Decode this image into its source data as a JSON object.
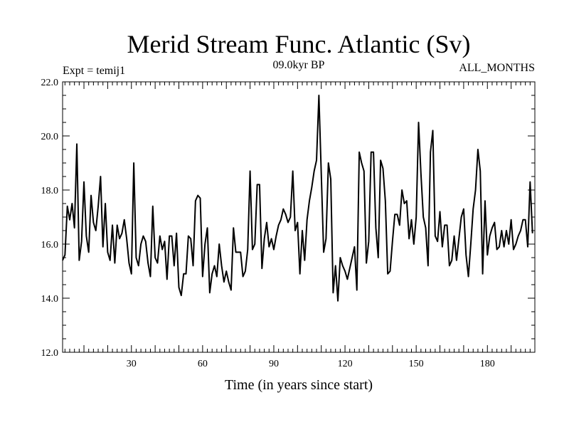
{
  "chart_data": {
    "type": "line",
    "title": "Merid Stream Func. Atlantic (Sv)",
    "experiment_label": "Expt = temij1",
    "period_label": "09.0kyr BP",
    "season_label": "ALL_MONTHS",
    "xlabel": "Time (in years since start)",
    "ylabel": "",
    "xlim": [
      1,
      200
    ],
    "ylim": [
      12.0,
      22.0
    ],
    "x_ticks": [
      30,
      60,
      90,
      120,
      150,
      180
    ],
    "y_ticks": [
      12.0,
      14.0,
      16.0,
      18.0,
      20.0,
      22.0
    ],
    "x_tick_labels": [
      "30",
      "60",
      "90",
      "120",
      "150",
      "180"
    ],
    "y_tick_labels": [
      "12.0",
      "14.0",
      "16.0",
      "18.0",
      "20.0",
      "22.0"
    ],
    "line_color": "#000000",
    "series": [
      {
        "name": "Merid Stream Func. Atlantic",
        "x_start": 1,
        "values": [
          15.4,
          15.6,
          17.4,
          16.9,
          17.5,
          16.6,
          19.7,
          15.4,
          16.1,
          18.3,
          16.3,
          15.7,
          17.8,
          16.8,
          16.5,
          17.4,
          18.5,
          15.9,
          17.5,
          15.7,
          15.4,
          16.7,
          15.3,
          16.7,
          16.2,
          16.4,
          16.9,
          16.2,
          15.3,
          14.9,
          19.0,
          15.5,
          15.2,
          16.0,
          16.3,
          16.1,
          15.3,
          14.8,
          17.4,
          15.5,
          15.3,
          16.3,
          15.8,
          16.1,
          14.7,
          16.3,
          16.3,
          15.2,
          16.4,
          14.4,
          14.1,
          14.9,
          14.9,
          16.3,
          16.2,
          15.2,
          17.6,
          17.8,
          17.7,
          14.8,
          16.0,
          16.6,
          14.2,
          14.9,
          15.2,
          14.8,
          16.0,
          15.2,
          14.6,
          15.0,
          14.6,
          14.3,
          16.6,
          15.7,
          15.7,
          15.7,
          14.8,
          15.0,
          15.8,
          18.7,
          15.8,
          16.0,
          18.2,
          18.2,
          15.1,
          16.2,
          16.8,
          15.9,
          16.2,
          15.8,
          16.3,
          16.7,
          16.9,
          17.3,
          17.1,
          16.8,
          17.0,
          18.7,
          16.5,
          16.8,
          14.9,
          16.5,
          15.4,
          16.9,
          17.6,
          18.1,
          18.7,
          19.1,
          21.5,
          18.6,
          15.7,
          16.2,
          19.0,
          18.4,
          14.2,
          15.2,
          13.9,
          15.5,
          15.2,
          15.0,
          14.7,
          15.1,
          15.5,
          15.9,
          14.3,
          19.4,
          19.0,
          18.7,
          15.3,
          16.1,
          19.4,
          19.4,
          16.6,
          15.5,
          19.1,
          18.8,
          17.6,
          14.9,
          15.0,
          16.1,
          17.1,
          17.1,
          16.7,
          18.0,
          17.5,
          17.6,
          16.2,
          16.9,
          16.0,
          17.0,
          20.5,
          18.6,
          17.0,
          16.6,
          15.2,
          19.4,
          20.2,
          16.3,
          16.1,
          17.2,
          15.9,
          16.7,
          16.7,
          15.2,
          15.4,
          16.3,
          15.4,
          16.2,
          17.0,
          17.3,
          15.6,
          14.8,
          16.0,
          17.3,
          18.0,
          19.5,
          18.7,
          14.9,
          17.6,
          15.6,
          16.3,
          16.6,
          16.8,
          15.8,
          15.9,
          16.5,
          15.9,
          16.5,
          16.0,
          16.9,
          15.8,
          16.0,
          16.3,
          16.5,
          16.9,
          16.9,
          15.9,
          18.3,
          16.4
        ]
      }
    ]
  }
}
